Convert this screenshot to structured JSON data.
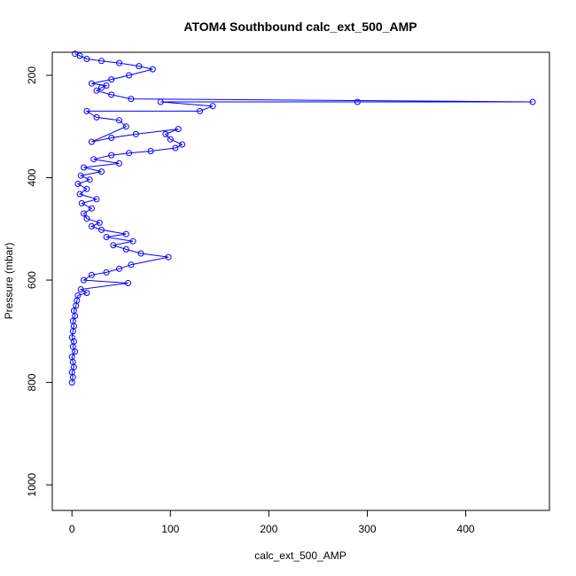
{
  "chart_data": {
    "type": "line",
    "title": "ATOM4 Southbound calc_ext_500_AMP",
    "xlabel": "calc_ext_500_AMP",
    "ylabel": "Pressure (mbar)",
    "xlim": [
      -20,
      485
    ],
    "ylim": [
      1050,
      155
    ],
    "y_reversed": true,
    "x_ticks": [
      0,
      100,
      200,
      300,
      400
    ],
    "y_ticks": [
      200,
      400,
      600,
      800,
      1000
    ],
    "grid": false,
    "legend": "none",
    "series_color": "#0000ff",
    "marker": "open-circle",
    "series": [
      {
        "points": [
          [
            0,
            800
          ],
          [
            1,
            790
          ],
          [
            0,
            780
          ],
          [
            2,
            770
          ],
          [
            1,
            760
          ],
          [
            0,
            750
          ],
          [
            3,
            740
          ],
          [
            1,
            730
          ],
          [
            2,
            720
          ],
          [
            0,
            712
          ],
          [
            1,
            700
          ],
          [
            2,
            690
          ],
          [
            1,
            680
          ],
          [
            3,
            670
          ],
          [
            2,
            660
          ],
          [
            4,
            650
          ],
          [
            5,
            640
          ],
          [
            6,
            630
          ],
          [
            15,
            625
          ],
          [
            9,
            618
          ],
          [
            57,
            606
          ],
          [
            12,
            600
          ],
          [
            20,
            590
          ],
          [
            35,
            585
          ],
          [
            48,
            578
          ],
          [
            60,
            570
          ],
          [
            98,
            555
          ],
          [
            70,
            548
          ],
          [
            55,
            540
          ],
          [
            42,
            532
          ],
          [
            62,
            524
          ],
          [
            35,
            516
          ],
          [
            55,
            510
          ],
          [
            30,
            502
          ],
          [
            20,
            495
          ],
          [
            28,
            488
          ],
          [
            15,
            480
          ],
          [
            12,
            470
          ],
          [
            20,
            460
          ],
          [
            10,
            450
          ],
          [
            25,
            442
          ],
          [
            8,
            432
          ],
          [
            15,
            422
          ],
          [
            6,
            412
          ],
          [
            18,
            404
          ],
          [
            9,
            396
          ],
          [
            30,
            388
          ],
          [
            12,
            380
          ],
          [
            48,
            372
          ],
          [
            22,
            364
          ],
          [
            40,
            356
          ],
          [
            58,
            352
          ],
          [
            80,
            348
          ],
          [
            105,
            342
          ],
          [
            112,
            335
          ],
          [
            100,
            325
          ],
          [
            95,
            315
          ],
          [
            108,
            305
          ],
          [
            65,
            315
          ],
          [
            40,
            322
          ],
          [
            20,
            330
          ],
          [
            55,
            300
          ],
          [
            48,
            288
          ],
          [
            25,
            282
          ],
          [
            15,
            270
          ],
          [
            130,
            270
          ],
          [
            143,
            260
          ],
          [
            90,
            252
          ],
          [
            290,
            252
          ],
          [
            468,
            252
          ],
          [
            60,
            246
          ],
          [
            40,
            238
          ],
          [
            25,
            230
          ],
          [
            30,
            224
          ],
          [
            35,
            220
          ],
          [
            20,
            216
          ],
          [
            40,
            208
          ],
          [
            58,
            200
          ],
          [
            82,
            188
          ],
          [
            68,
            182
          ],
          [
            48,
            176
          ],
          [
            30,
            172
          ],
          [
            15,
            168
          ],
          [
            8,
            162
          ],
          [
            3,
            158
          ]
        ]
      }
    ]
  }
}
